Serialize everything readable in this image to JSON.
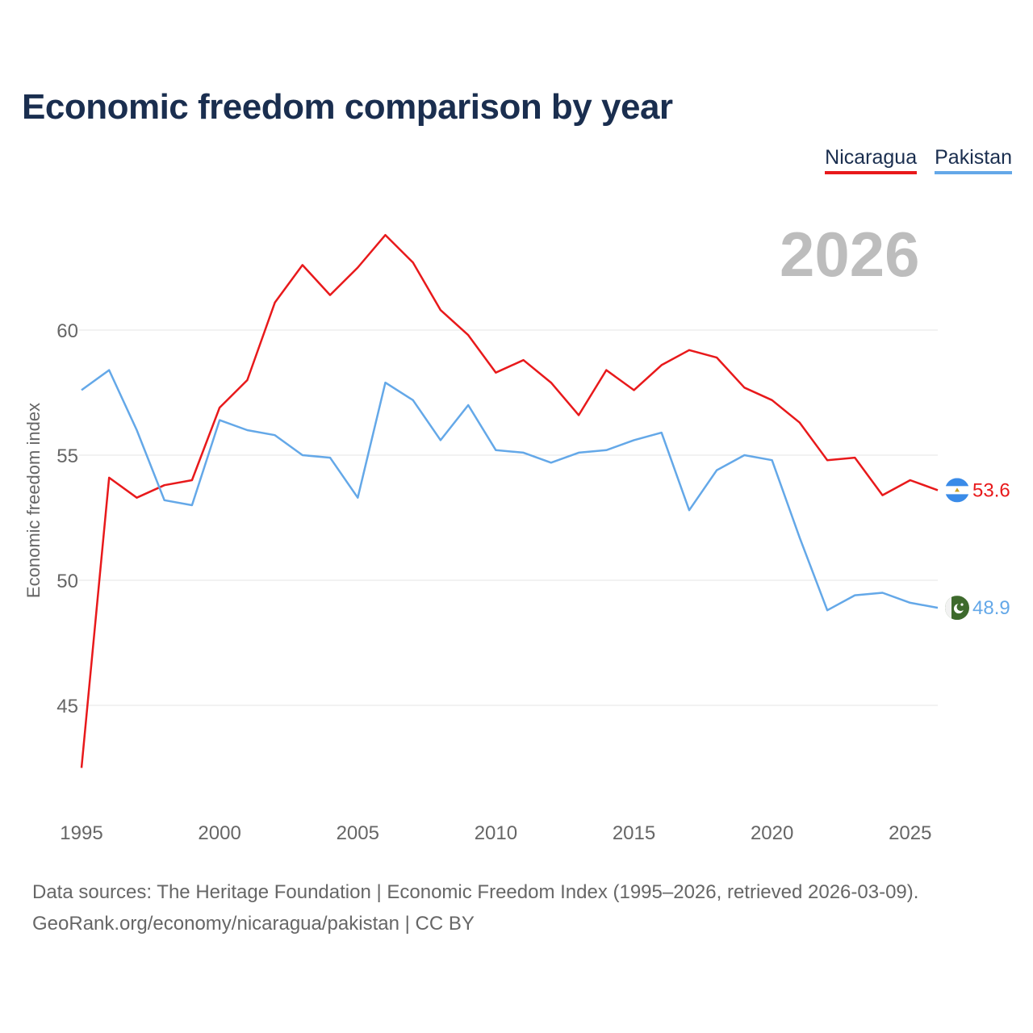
{
  "title": "Economic freedom comparison by year",
  "current_year": "2026",
  "footer": {
    "line1": "Data sources: The Heritage Foundation | Economic Freedom Index (1995–2026, retrieved 2026-03-09).",
    "line2": "GeoRank.org/economy/nicaragua/pakistan | CC BY"
  },
  "colors": {
    "nicaragua": "#e8191b",
    "pakistan": "#64a8e8",
    "grid": "#e6e6e6",
    "axis_text": "#666666",
    "title": "#1a2e4f"
  },
  "chart_data": {
    "type": "line",
    "title": "Economic freedom comparison by year",
    "xlabel": "",
    "ylabel": "Economic freedom index",
    "xlim": [
      1995,
      2026
    ],
    "ylim": [
      41,
      65
    ],
    "xticks": [
      1995,
      2000,
      2005,
      2010,
      2015,
      2020,
      2025
    ],
    "yticks": [
      45,
      50,
      55,
      60
    ],
    "grid": true,
    "legend": "top-right",
    "x": [
      1995,
      1996,
      1997,
      1998,
      1999,
      2000,
      2001,
      2002,
      2003,
      2004,
      2005,
      2006,
      2007,
      2008,
      2009,
      2010,
      2011,
      2012,
      2013,
      2014,
      2015,
      2016,
      2017,
      2018,
      2019,
      2020,
      2021,
      2022,
      2023,
      2024,
      2025,
      2026
    ],
    "series": [
      {
        "name": "Nicaragua",
        "color": "#e8191b",
        "end_label": "53.6",
        "flag_icon": "nicaragua-flag-icon",
        "values": [
          42.5,
          54.1,
          53.3,
          53.8,
          54.0,
          56.9,
          58.0,
          61.1,
          62.6,
          61.4,
          62.5,
          63.8,
          62.7,
          60.8,
          59.8,
          58.3,
          58.8,
          57.9,
          56.6,
          58.4,
          57.6,
          58.6,
          59.2,
          58.9,
          57.7,
          57.2,
          56.3,
          54.8,
          54.9,
          53.4,
          54.0,
          53.6
        ]
      },
      {
        "name": "Pakistan",
        "color": "#64a8e8",
        "end_label": "48.9",
        "flag_icon": "pakistan-flag-icon",
        "values": [
          57.6,
          58.4,
          56.0,
          53.2,
          53.0,
          56.4,
          56.0,
          55.8,
          55.0,
          54.9,
          53.3,
          57.9,
          57.2,
          55.6,
          57.0,
          55.2,
          55.1,
          54.7,
          55.1,
          55.2,
          55.6,
          55.9,
          52.8,
          54.4,
          55.0,
          54.8,
          51.7,
          48.8,
          49.4,
          49.5,
          49.1,
          48.9
        ]
      }
    ]
  }
}
